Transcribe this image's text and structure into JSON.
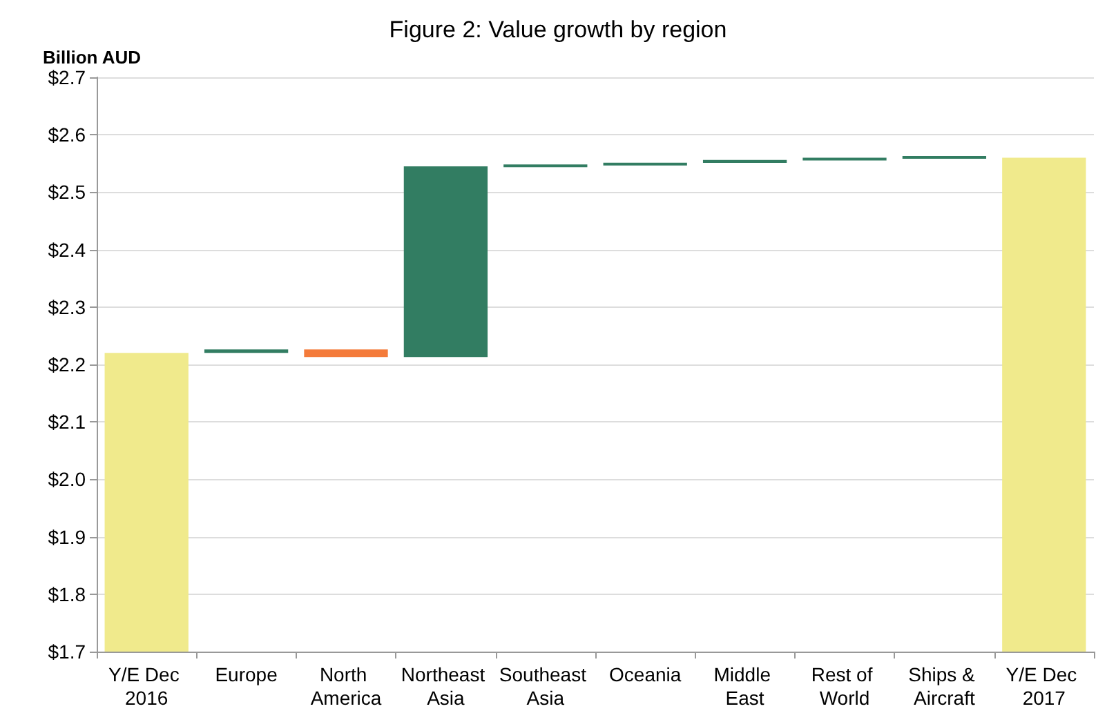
{
  "chart_data": {
    "type": "bar",
    "title": "Figure 2: Value growth by region",
    "ylabel": "Billion AUD",
    "categories": [
      "Y/E Dec 2016",
      "Europe",
      "North America",
      "Northeast Asia",
      "Southeast Asia",
      "Oceania",
      "Middle East",
      "Rest of World",
      "Ships & Aircraft",
      "Y/E Dec 2017"
    ],
    "values": [
      2.22,
      0.006,
      -0.013,
      0.332,
      0.002,
      0.004,
      0.005,
      0.003,
      0.003,
      2.56
    ],
    "base": [
      null,
      2.22,
      2.226,
      2.213,
      2.545,
      2.547,
      2.551,
      2.556,
      2.559,
      null
    ],
    "colors": [
      "#f0ea8c",
      "#327d62",
      "#f47b3a",
      "#327d62",
      "#327d62",
      "#327d62",
      "#327d62",
      "#327d62",
      "#327d62",
      "#f0ea8c"
    ],
    "ylim": [
      1.7,
      2.7
    ],
    "yticks": [
      {
        "value": 1.7,
        "label": "$1.7"
      },
      {
        "value": 1.8,
        "label": "$1.8"
      },
      {
        "value": 1.9,
        "label": "$1.9"
      },
      {
        "value": 2.0,
        "label": "$2.0"
      },
      {
        "value": 2.1,
        "label": "$2.1"
      },
      {
        "value": 2.2,
        "label": "$2.2"
      },
      {
        "value": 2.3,
        "label": "$2.3"
      },
      {
        "value": 2.4,
        "label": "$2.4"
      },
      {
        "value": 2.5,
        "label": "$2.5"
      },
      {
        "value": 2.6,
        "label": "$2.6"
      },
      {
        "value": 2.7,
        "label": "$2.7"
      }
    ],
    "grid": "y"
  }
}
